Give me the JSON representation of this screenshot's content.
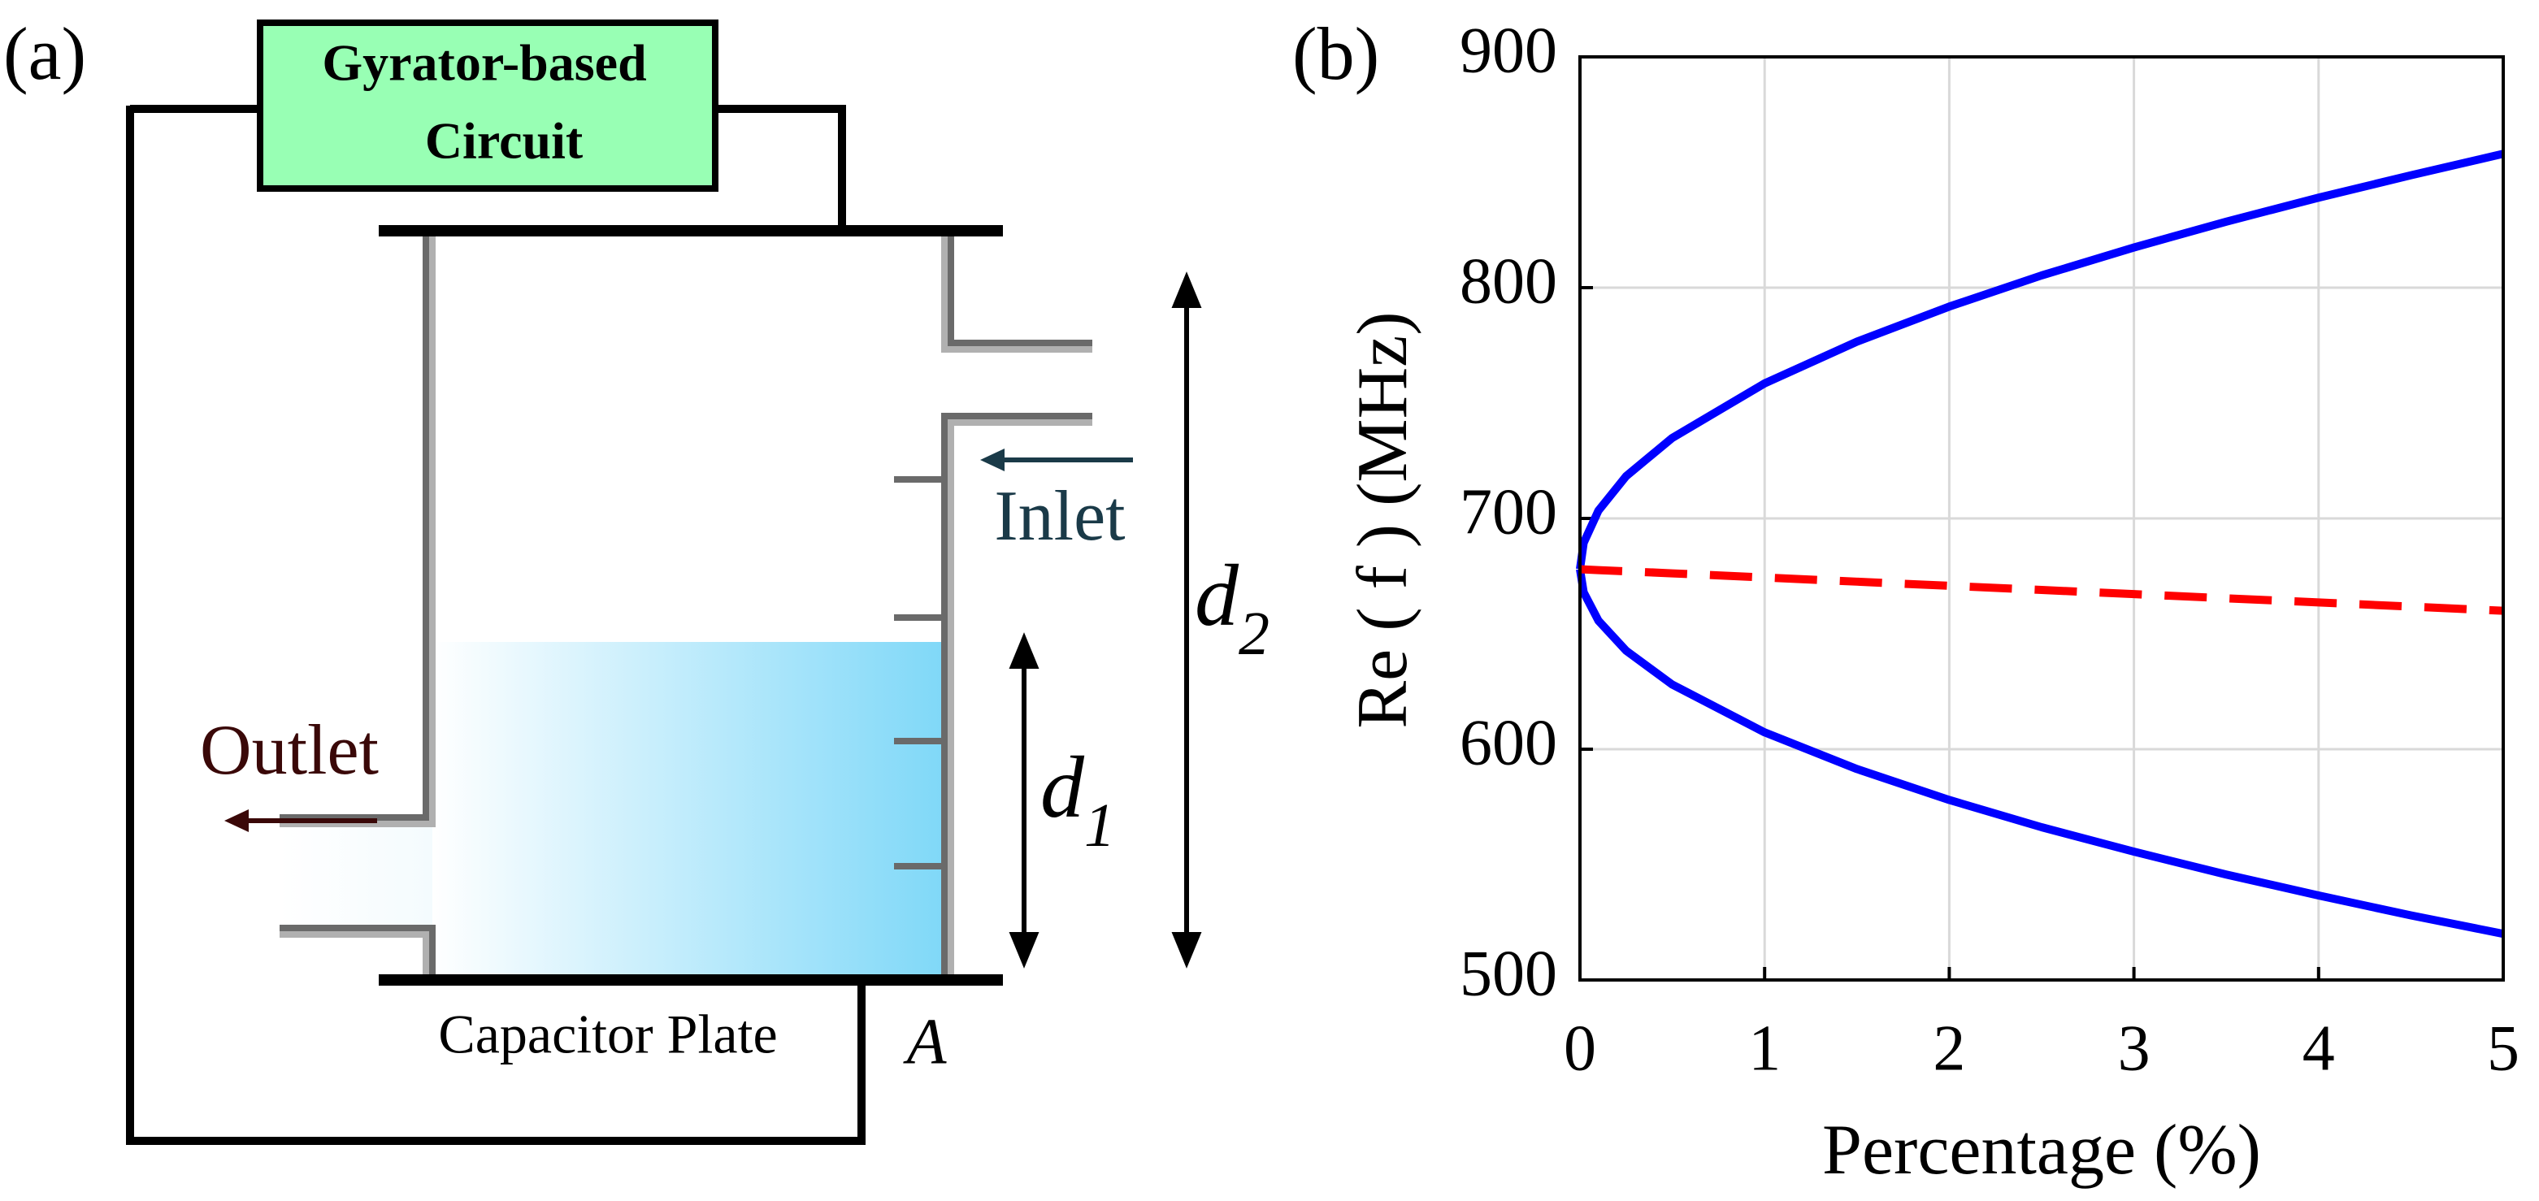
{
  "diagram": {
    "panel_label": "(a)",
    "circuit_label": [
      "Gyrator-based",
      "Circuit"
    ],
    "inlet": "Inlet",
    "outlet": "Outlet",
    "d1": {
      "symbol": "d",
      "subscript": "1"
    },
    "d2": {
      "symbol": "d",
      "subscript": "2"
    },
    "plate_label": "Capacitor Plate",
    "area_label": "A"
  },
  "chart_data": {
    "type": "line",
    "panel_label": "(b)",
    "xlabel": "Percentage (%)",
    "ylabel": "Re ( f ) (MHz)",
    "x": [
      0,
      0.02,
      0.1,
      0.25,
      0.5,
      1,
      1.5,
      2,
      2.5,
      3,
      3.5,
      4,
      4.5,
      5
    ],
    "series": [
      {
        "color": "#0000ff",
        "style": "solid",
        "values": [
          678,
          689.4,
          703.4,
          718.3,
          734.9,
          758.5,
          776.6,
          791.8,
          805.3,
          817.4,
          828.6,
          839,
          848.7,
          858
        ]
      },
      {
        "color": "#0000ff",
        "style": "solid",
        "values": [
          678,
          668,
          655.7,
          642.7,
          628,
          607.3,
          591.4,
          578,
          566.2,
          555.6,
          545.7,
          536.6,
          528,
          520
        ]
      },
      {
        "color": "#ff0000",
        "style": "dashed",
        "values": [
          678,
          677.9,
          677.6,
          677.1,
          676.2,
          674.4,
          672.6,
          670.8,
          669,
          667.2,
          665.4,
          663.6,
          661.8,
          660
        ]
      }
    ],
    "xlim": [
      0,
      5
    ],
    "xticks": [
      0,
      1,
      2,
      3,
      4,
      5
    ],
    "ylim": [
      500,
      900
    ],
    "yticks": [
      500,
      600,
      700,
      800,
      900
    ],
    "grid": true
  }
}
